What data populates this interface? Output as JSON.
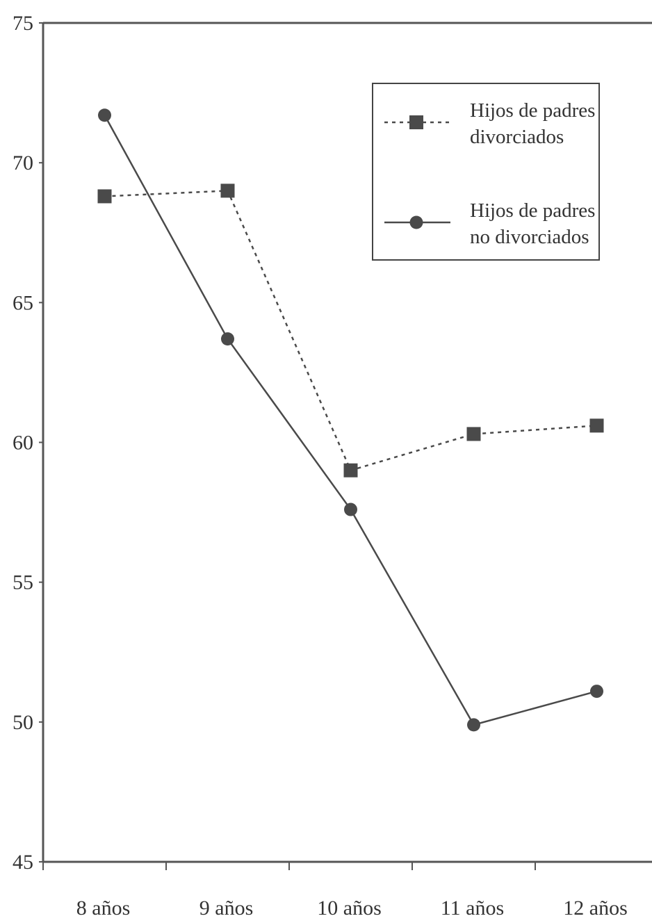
{
  "chart_data": {
    "type": "line",
    "categories": [
      "8 años",
      "9 años",
      "10 años",
      "11 años",
      "12 años"
    ],
    "ylim": [
      45,
      75
    ],
    "yticks": [
      45,
      50,
      55,
      60,
      65,
      70,
      75
    ],
    "grid": false,
    "legend_position": "top-right",
    "series": [
      {
        "name": "Hijos de padres divorciados",
        "name_lines": [
          "Hijos de padres",
          "divorciados"
        ],
        "style": "dotted",
        "marker": "square",
        "color": "#4a4a4a",
        "values": [
          68.8,
          69.0,
          59.0,
          60.3,
          60.6
        ]
      },
      {
        "name": "Hijos de padres no divorciados",
        "name_lines": [
          "Hijos de padres",
          "no divorciados"
        ],
        "style": "solid",
        "marker": "circle",
        "color": "#4a4a4a",
        "values": [
          71.7,
          63.7,
          57.6,
          49.9,
          51.1
        ]
      }
    ]
  }
}
